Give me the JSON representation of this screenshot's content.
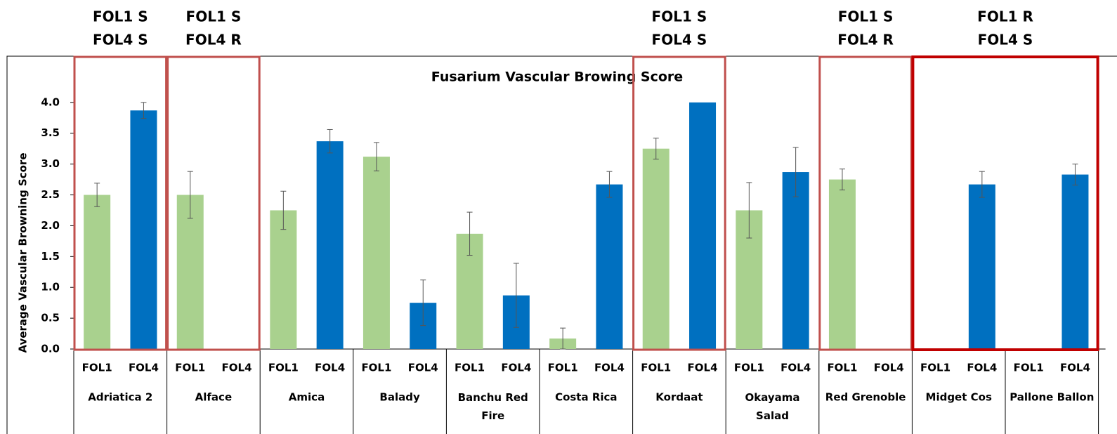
{
  "chart_data": {
    "type": "bar",
    "title": "Fusarium Vascular Browing Score",
    "y_label": "Average Vascular Browning Score",
    "categories": [
      "Adriatica 2",
      "Alface",
      "Amica",
      "Balady",
      "Banchu Red Fire",
      "Costa Rica",
      "Kordaat",
      "Okayama Salad",
      "Red Grenoble",
      "Midget Cos",
      "Pallone Ballon"
    ],
    "series": [
      {
        "name": "FOL1",
        "color": "#a9d18e",
        "values": [
          2.5,
          2.5,
          2.25,
          3.12,
          1.87,
          0.17,
          3.25,
          2.25,
          2.75,
          0,
          0
        ],
        "errors": [
          0.19,
          0.38,
          0.31,
          0.23,
          0.35,
          0.17,
          0.17,
          0.45,
          0.17,
          0,
          0
        ]
      },
      {
        "name": "FOL4",
        "color": "#0070c0",
        "values": [
          3.87,
          0,
          3.37,
          0.75,
          0.87,
          2.67,
          4.0,
          2.87,
          0,
          2.67,
          2.83
        ],
        "errors": [
          0.13,
          0,
          0.19,
          0.37,
          0.52,
          0.21,
          0,
          0.4,
          0,
          0.21,
          0.17
        ]
      }
    ],
    "ylim": [
      0,
      4.75
    ],
    "yticks": [
      {
        "value": 0,
        "label": "0.0"
      },
      {
        "value": 0.5,
        "label": "0.5"
      },
      {
        "value": 1,
        "label": "1.0"
      },
      {
        "value": 1.5,
        "label": "1.5"
      },
      {
        "value": 2,
        "label": "2.0"
      },
      {
        "value": 2.5,
        "label": "2.5"
      },
      {
        "value": 3,
        "label": "3.0"
      },
      {
        "value": 3.5,
        "label": "3.5"
      },
      {
        "value": 4,
        "label": "4.0"
      }
    ],
    "annotations": [
      {
        "lines": [
          "FOL1 S",
          "FOL4 S"
        ]
      },
      {
        "lines": [
          "FOL1 S",
          "FOL4 R"
        ]
      },
      {
        "lines": [
          "FOL1 S",
          "FOL4 S"
        ]
      },
      {
        "lines": [
          "FOL1 S",
          "FOL4 R"
        ]
      },
      {
        "lines": [
          "FOL1 R",
          "FOL4 S"
        ]
      }
    ]
  }
}
